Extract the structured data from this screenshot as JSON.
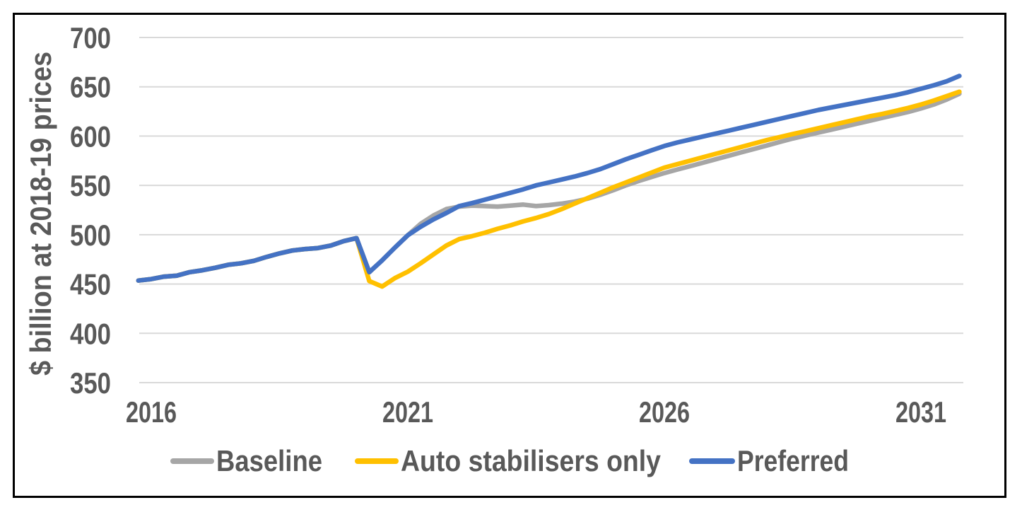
{
  "chart_data": {
    "type": "line",
    "title": "",
    "xlabel": "",
    "ylabel": "$ billion at 2018-19 prices",
    "ylim": [
      350,
      700
    ],
    "y_ticks": [
      350,
      400,
      450,
      500,
      550,
      600,
      650,
      700
    ],
    "x_ticks": [
      2016,
      2021,
      2026,
      2031
    ],
    "x_start": 2015.75,
    "x_step": 0.25,
    "grid": "horizontal",
    "legend_position": "bottom",
    "colors": {
      "baseline": "#A6A6A6",
      "auto_stabilisers": "#FFC000",
      "preferred": "#4472C4",
      "text": "#595959",
      "gridline": "#D9D9D9",
      "border": "#000000"
    },
    "series": [
      {
        "name": "Baseline",
        "color": "#A6A6A6",
        "values": [
          453.5,
          455,
          457.5,
          458.5,
          462,
          464,
          466.5,
          469.5,
          471,
          473.5,
          477.5,
          481,
          484,
          485.5,
          486.5,
          489,
          493.5,
          496.5,
          462,
          474,
          487,
          499.5,
          511,
          519.5,
          526,
          528.5,
          529.5,
          529,
          528.5,
          529.5,
          530.5,
          529,
          530,
          531.5,
          533.5,
          536.5,
          540.5,
          545,
          550,
          554.5,
          558.5,
          562.5,
          566,
          569.5,
          573,
          576.5,
          580,
          583.5,
          587,
          590.5,
          594,
          597.5,
          600.5,
          603.5,
          606.5,
          609.5,
          612.5,
          615.5,
          618.5,
          621.5,
          624.5,
          628,
          632,
          637,
          643
        ]
      },
      {
        "name": "Auto stabilisers only",
        "color": "#FFC000",
        "values": [
          453.5,
          455,
          457.5,
          458.5,
          462,
          464,
          466.5,
          469.5,
          471,
          473.5,
          477.5,
          481,
          484,
          485.5,
          486.5,
          489,
          493.5,
          496.5,
          453,
          447.5,
          456,
          462.5,
          471,
          480,
          489,
          495.5,
          498.5,
          502,
          506,
          509.5,
          513.5,
          517,
          521,
          526,
          531.5,
          537,
          542.5,
          548,
          553,
          558,
          563,
          568,
          571.5,
          575,
          578.5,
          582,
          585.5,
          589,
          592.5,
          596,
          599,
          602,
          605,
          608,
          611,
          614,
          617,
          620,
          622.5,
          625.5,
          628.5,
          632,
          636,
          640.5,
          645
        ]
      },
      {
        "name": "Preferred",
        "color": "#4472C4",
        "values": [
          453.5,
          455,
          457.5,
          458.5,
          462,
          464,
          466.5,
          469.5,
          471,
          473.5,
          477.5,
          481,
          484,
          485.5,
          486.5,
          489,
          493.5,
          496.5,
          462,
          474,
          487,
          499.5,
          508,
          515.5,
          522,
          529,
          532,
          535.5,
          539,
          542.5,
          546,
          550,
          553,
          556,
          559,
          562.5,
          566.5,
          571.5,
          576.5,
          581,
          585.5,
          590,
          593.5,
          596.5,
          599.5,
          602.5,
          605.5,
          608.5,
          611.5,
          614.5,
          617.5,
          620.5,
          623.5,
          626.5,
          629,
          631.5,
          634,
          636.5,
          639,
          641.5,
          644.5,
          648,
          651.5,
          655.5,
          661
        ]
      }
    ],
    "legend": [
      {
        "label": "Baseline",
        "color": "#A6A6A6"
      },
      {
        "label": "Auto stabilisers only",
        "color": "#FFC000"
      },
      {
        "label": "Preferred",
        "color": "#4472C4"
      }
    ]
  }
}
